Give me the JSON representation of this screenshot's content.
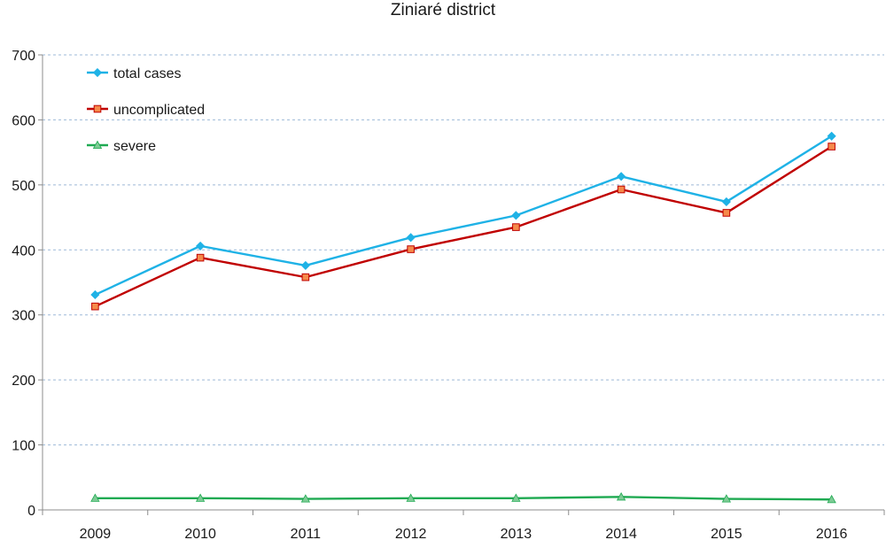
{
  "chart_data": {
    "type": "line",
    "title": "Ziniaré district",
    "xlabel": "",
    "ylabel": "",
    "categories": [
      "2009",
      "2010",
      "2011",
      "2012",
      "2013",
      "2014",
      "2015",
      "2016"
    ],
    "ylim": [
      0,
      700
    ],
    "yticks": [
      0,
      100,
      200,
      300,
      400,
      500,
      600,
      700
    ],
    "grid": "horizontal dashed",
    "legend_position": "top-left",
    "series": [
      {
        "name": "total cases",
        "color": "#1fb2e6",
        "marker": "diamond",
        "values": [
          331,
          406,
          376,
          419,
          453,
          513,
          474,
          575
        ]
      },
      {
        "name": "uncomplicated",
        "color": "#c00000",
        "marker_fill": "#f58a4b",
        "marker": "square",
        "values": [
          313,
          388,
          358,
          401,
          435,
          493,
          457,
          559
        ]
      },
      {
        "name": "severe",
        "color": "#1faa52",
        "marker_fill": "#7ecb95",
        "marker": "triangle",
        "values": [
          18,
          18,
          17,
          18,
          18,
          20,
          17,
          16
        ]
      }
    ]
  }
}
